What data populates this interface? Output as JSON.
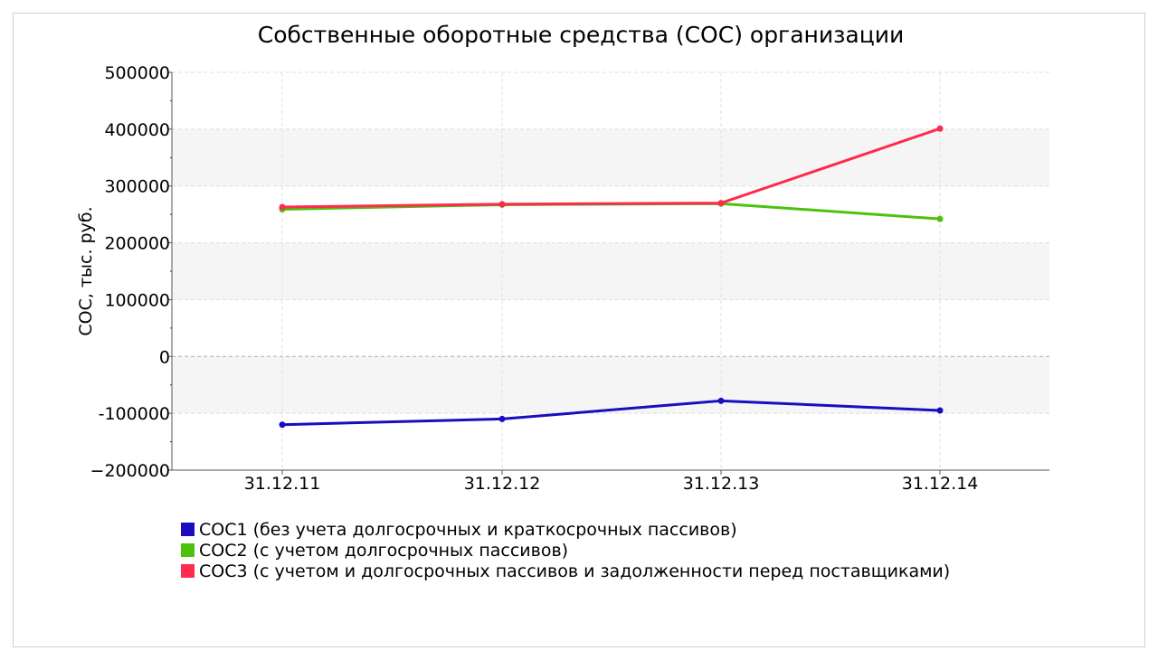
{
  "chart_data": {
    "type": "line",
    "title": "Собственные оборотные средства (СОС) организации",
    "ylabel": "СОС, тыс. руб.",
    "xlabel": "",
    "categories": [
      "31.12.11",
      "31.12.12",
      "31.12.13",
      "31.12.14"
    ],
    "ylim": [
      -200000,
      500000
    ],
    "yticks": [
      -200000,
      -100000,
      0,
      100000,
      200000,
      300000,
      400000,
      500000
    ],
    "ytick_labels": [
      "−200000",
      "-100000",
      "0",
      "100000",
      "200000",
      "300000",
      "400000",
      "500000"
    ],
    "grid": true,
    "legend_position": "bottom",
    "series": [
      {
        "name": "СОС1 (без учета долгосрочных и краткосрочных пассивов)",
        "color": "#1a0dbf",
        "values": [
          -120000,
          -110000,
          -78000,
          -95000
        ]
      },
      {
        "name": "СОС2 (с учетом долгосрочных пассивов)",
        "color": "#4cc20d",
        "values": [
          259000,
          267000,
          269000,
          242000
        ]
      },
      {
        "name": "СОС3 (с учетом и долгосрочных пассивов и задолженности перед поставщиками)",
        "color": "#ff2a4d",
        "values": [
          263000,
          268000,
          270000,
          401000
        ]
      }
    ]
  }
}
